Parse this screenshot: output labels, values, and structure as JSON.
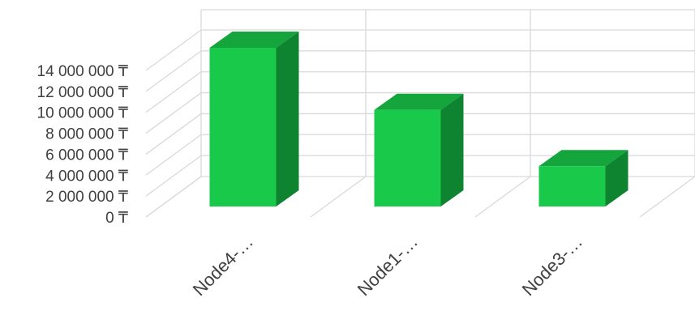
{
  "chart_data": {
    "type": "bar",
    "style": "3d-column",
    "categories": [
      "Node4-…",
      "Node1-…",
      "Node3-…"
    ],
    "series": [
      {
        "values": [
          13800000,
          8400000,
          3500000
        ]
      }
    ],
    "y_tick_labels": [
      "0 ₸",
      "2 000 000 ₸",
      "4 000 000 ₸",
      "6 000 000 ₸",
      "8 000 000 ₸",
      "10 000 000 ₸",
      "12 000 000 ₸",
      "14 000 000 ₸"
    ],
    "ylim": [
      0,
      14000000
    ],
    "y_tick_step": 2000000,
    "grid": true,
    "legend": "none",
    "colors": {
      "front": "#19c94a",
      "side": "#0f8430",
      "top": "#14a53c",
      "grid": "#d9d9d9"
    }
  }
}
